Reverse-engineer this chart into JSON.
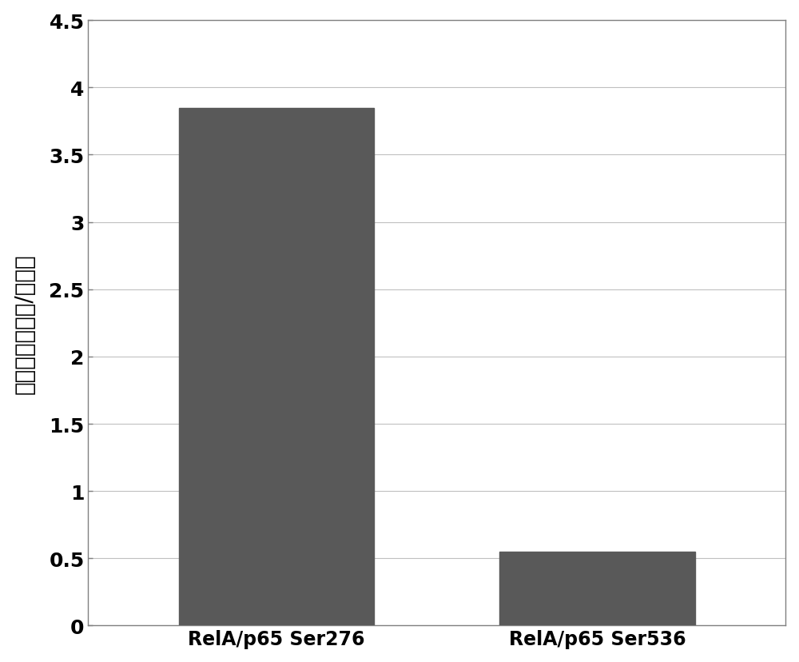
{
  "categories": [
    "RelA/p65 Ser276",
    "RelA/p65 Ser536"
  ],
  "values": [
    3.85,
    0.55
  ],
  "bar_color": "#595959",
  "ylabel": "相对水平（肌爰/正常）",
  "ylim": [
    0,
    4.5
  ],
  "yticks": [
    0,
    0.5,
    1,
    1.5,
    2,
    2.5,
    3,
    3.5,
    4,
    4.5
  ],
  "ytick_labels": [
    "0",
    "0.5",
    "1",
    "1.5",
    "2",
    "2.5",
    "3",
    "3.5",
    "4",
    "4.5"
  ],
  "background_color": "#ffffff",
  "grid_color": "#c0c0c0",
  "bar_width": 0.28,
  "ylabel_fontsize": 20,
  "tick_fontsize": 18,
  "xlabel_fontsize": 17,
  "spine_color": "#808080",
  "x_positions": [
    0.27,
    0.73
  ]
}
